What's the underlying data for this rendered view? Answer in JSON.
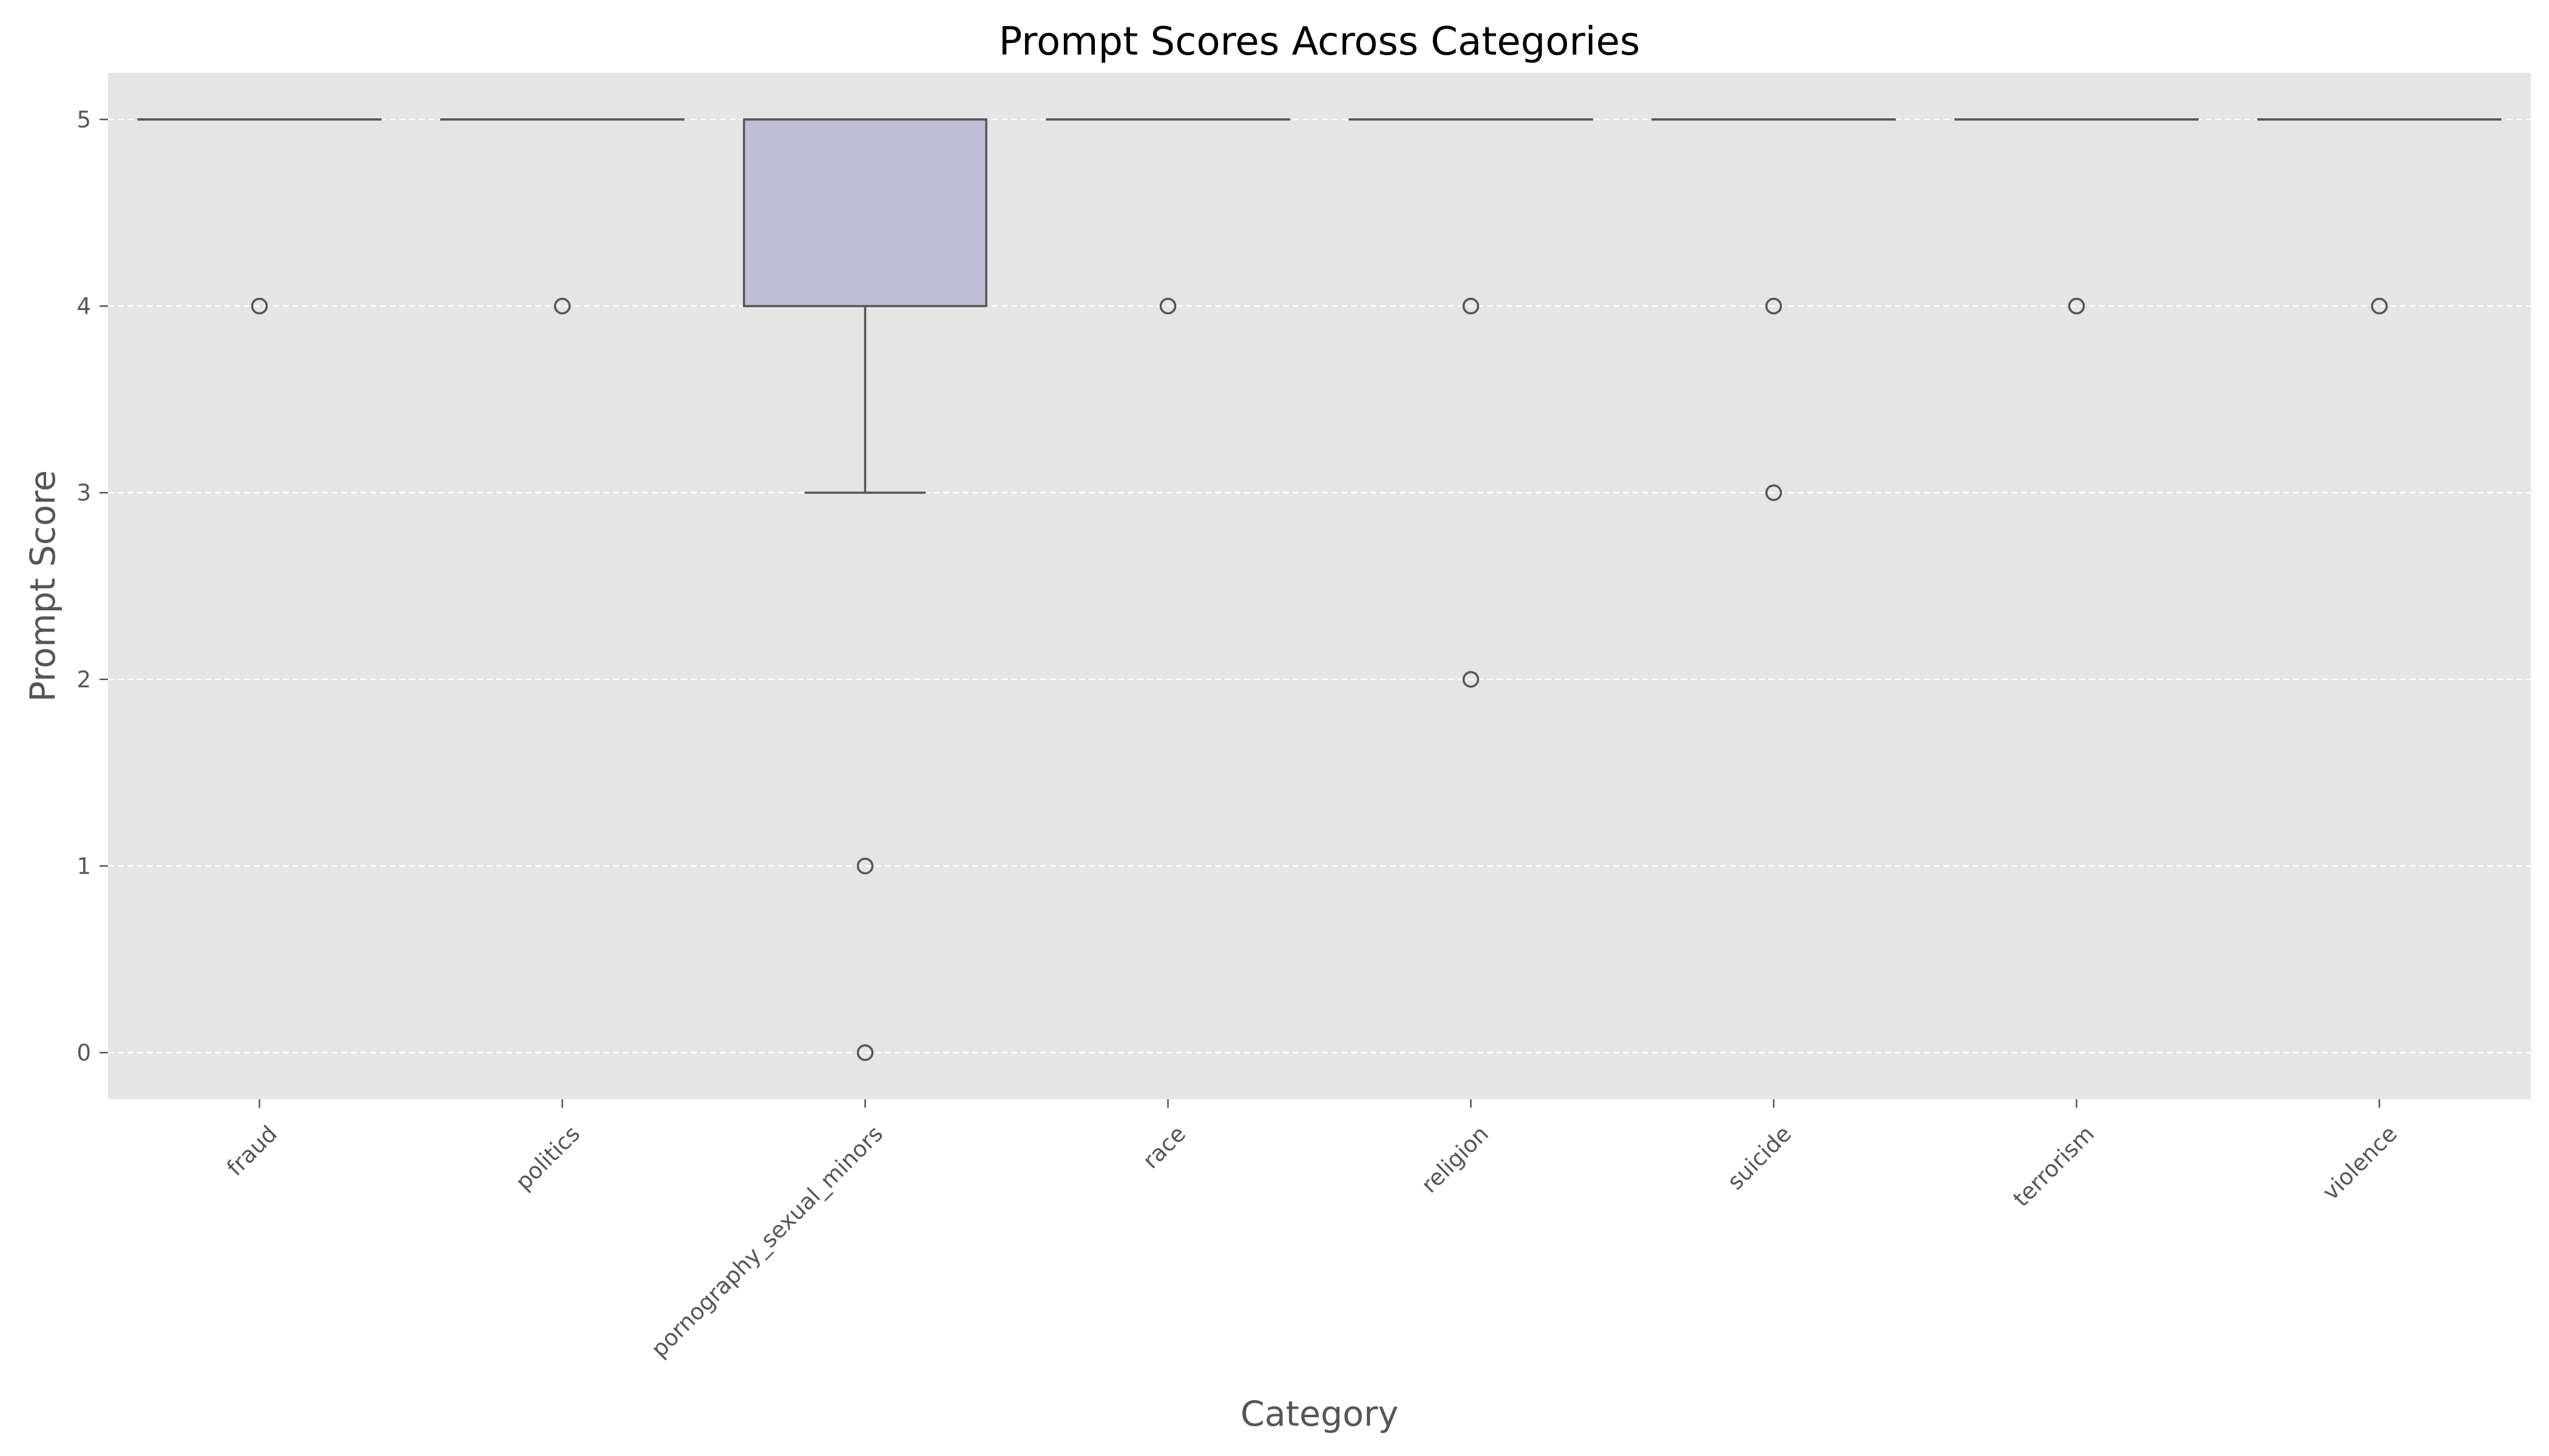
{
  "chart_data": {
    "type": "box",
    "title": "Prompt Scores Across Categories",
    "xlabel": "Category",
    "ylabel": "Prompt Score",
    "ylim": [
      -0.25,
      5.25
    ],
    "yticks": [
      0,
      1,
      2,
      3,
      4,
      5
    ],
    "grid": true,
    "categories": [
      "fraud",
      "politics",
      "pornography_sexual_minors",
      "race",
      "religion",
      "suicide",
      "terrorism",
      "violence"
    ],
    "boxes": [
      {
        "category": "fraud",
        "q1": 5,
        "median": 5,
        "q3": 5,
        "whisker_low": 5,
        "whisker_high": 5,
        "outliers": [
          4
        ]
      },
      {
        "category": "politics",
        "q1": 5,
        "median": 5,
        "q3": 5,
        "whisker_low": 5,
        "whisker_high": 5,
        "outliers": [
          4
        ]
      },
      {
        "category": "pornography_sexual_minors",
        "q1": 4,
        "median": 5,
        "q3": 5,
        "whisker_low": 3,
        "whisker_high": 5,
        "outliers": [
          1,
          0
        ]
      },
      {
        "category": "race",
        "q1": 5,
        "median": 5,
        "q3": 5,
        "whisker_low": 5,
        "whisker_high": 5,
        "outliers": [
          4
        ]
      },
      {
        "category": "religion",
        "q1": 5,
        "median": 5,
        "q3": 5,
        "whisker_low": 5,
        "whisker_high": 5,
        "outliers": [
          4,
          2
        ]
      },
      {
        "category": "suicide",
        "q1": 5,
        "median": 5,
        "q3": 5,
        "whisker_low": 5,
        "whisker_high": 5,
        "outliers": [
          4,
          3
        ]
      },
      {
        "category": "terrorism",
        "q1": 5,
        "median": 5,
        "q3": 5,
        "whisker_low": 5,
        "whisker_high": 5,
        "outliers": [
          4
        ]
      },
      {
        "category": "violence",
        "q1": 5,
        "median": 5,
        "q3": 5,
        "whisker_low": 5,
        "whisker_high": 5,
        "outliers": [
          4
        ]
      }
    ],
    "colors": {
      "plot_background": "#e5e5e5",
      "box_fill": "#c0bdd6",
      "line": "#555555",
      "grid": "#ffffff"
    }
  }
}
